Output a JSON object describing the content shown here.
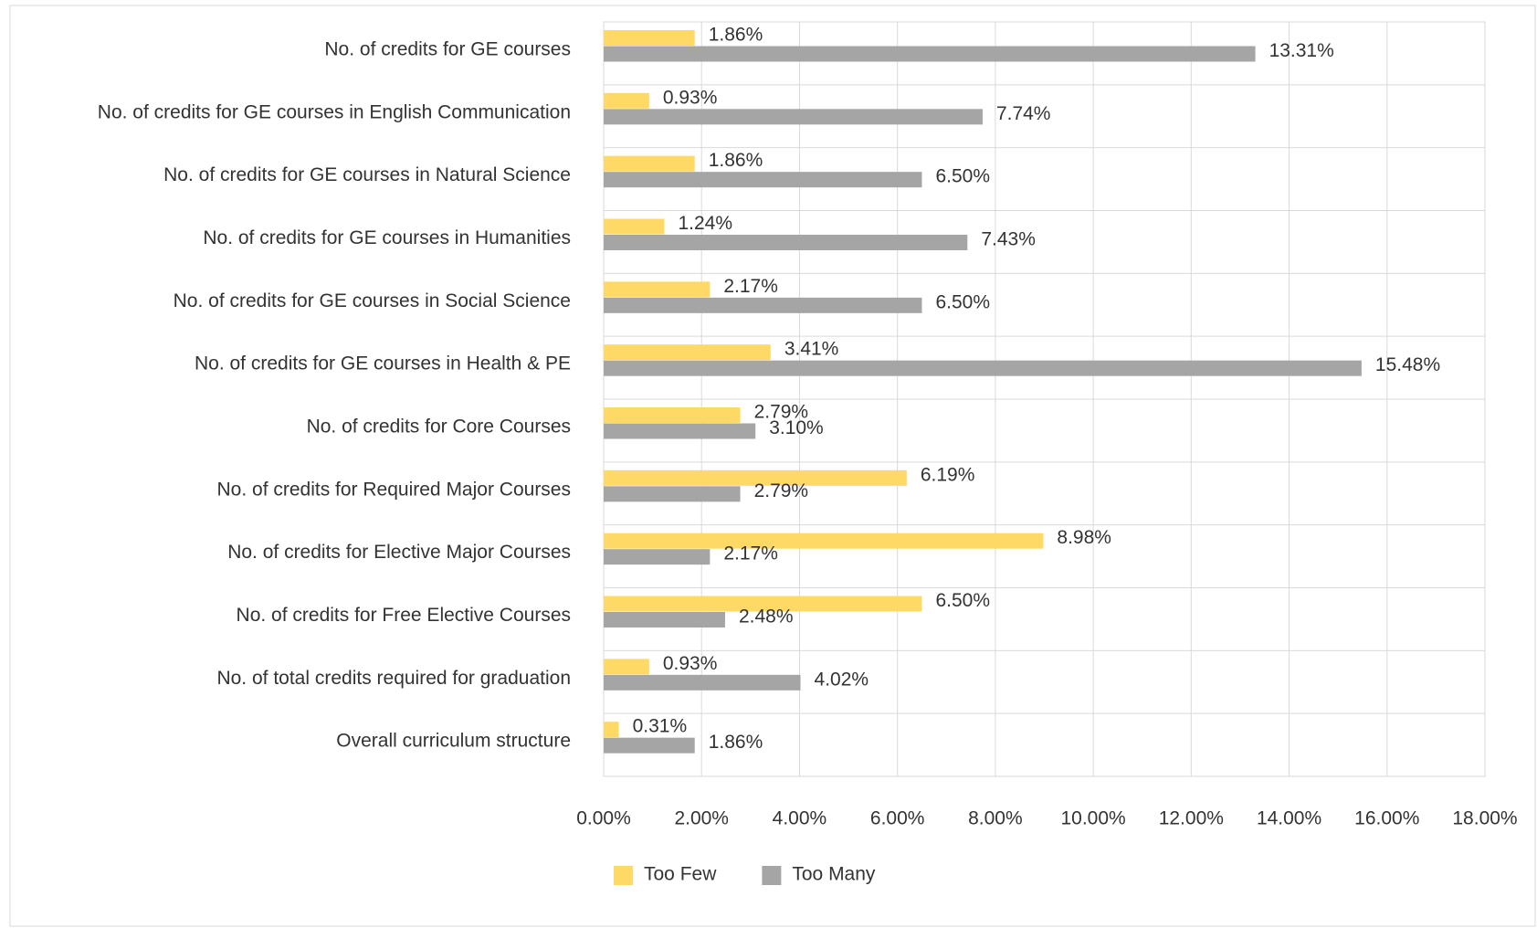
{
  "chart_data": {
    "type": "bar",
    "orientation": "horizontal",
    "categories": [
      "No. of credits for GE courses",
      "No. of credits for GE courses in English Communication",
      "No. of credits for GE courses in Natural Science",
      "No. of credits for GE courses in Humanities",
      "No. of credits for GE courses in Social Science",
      "No. of credits for GE courses in Health & PE",
      "No. of credits for Core Courses",
      "No. of credits for Required Major Courses",
      "No. of credits for Elective Major Courses",
      "No. of credits for Free Elective Courses",
      "No. of total credits required for graduation",
      "Overall curriculum structure"
    ],
    "series": [
      {
        "name": "Too Few",
        "color": "#ffd966",
        "values": [
          1.86,
          0.93,
          1.86,
          1.24,
          2.17,
          3.41,
          2.79,
          6.19,
          8.98,
          6.5,
          0.93,
          0.31
        ],
        "value_labels": [
          "1.86%",
          "0.93%",
          "1.86%",
          "1.24%",
          "2.17%",
          "3.41%",
          "2.79%",
          "6.19%",
          "8.98%",
          "6.50%",
          "0.93%",
          "0.31%"
        ]
      },
      {
        "name": "Too Many",
        "color": "#a5a5a5",
        "values": [
          13.31,
          7.74,
          6.5,
          7.43,
          6.5,
          15.48,
          3.1,
          2.79,
          2.17,
          2.48,
          4.02,
          1.86
        ],
        "value_labels": [
          "13.31%",
          "7.74%",
          "6.50%",
          "7.43%",
          "6.50%",
          "15.48%",
          "3.10%",
          "2.79%",
          "2.17%",
          "2.48%",
          "4.02%",
          "1.86%"
        ]
      }
    ],
    "xlim": [
      0,
      18
    ],
    "xticks": [
      {
        "value": 0,
        "label": "0.00%"
      },
      {
        "value": 2,
        "label": "2.00%"
      },
      {
        "value": 4,
        "label": "4.00%"
      },
      {
        "value": 6,
        "label": "6.00%"
      },
      {
        "value": 8,
        "label": "8.00%"
      },
      {
        "value": 10,
        "label": "10.00%"
      },
      {
        "value": 12,
        "label": "12.00%"
      },
      {
        "value": 14,
        "label": "14.00%"
      },
      {
        "value": 16,
        "label": "16.00%"
      },
      {
        "value": 18,
        "label": "18.00%"
      }
    ],
    "grid": true,
    "legend": "bottom"
  }
}
